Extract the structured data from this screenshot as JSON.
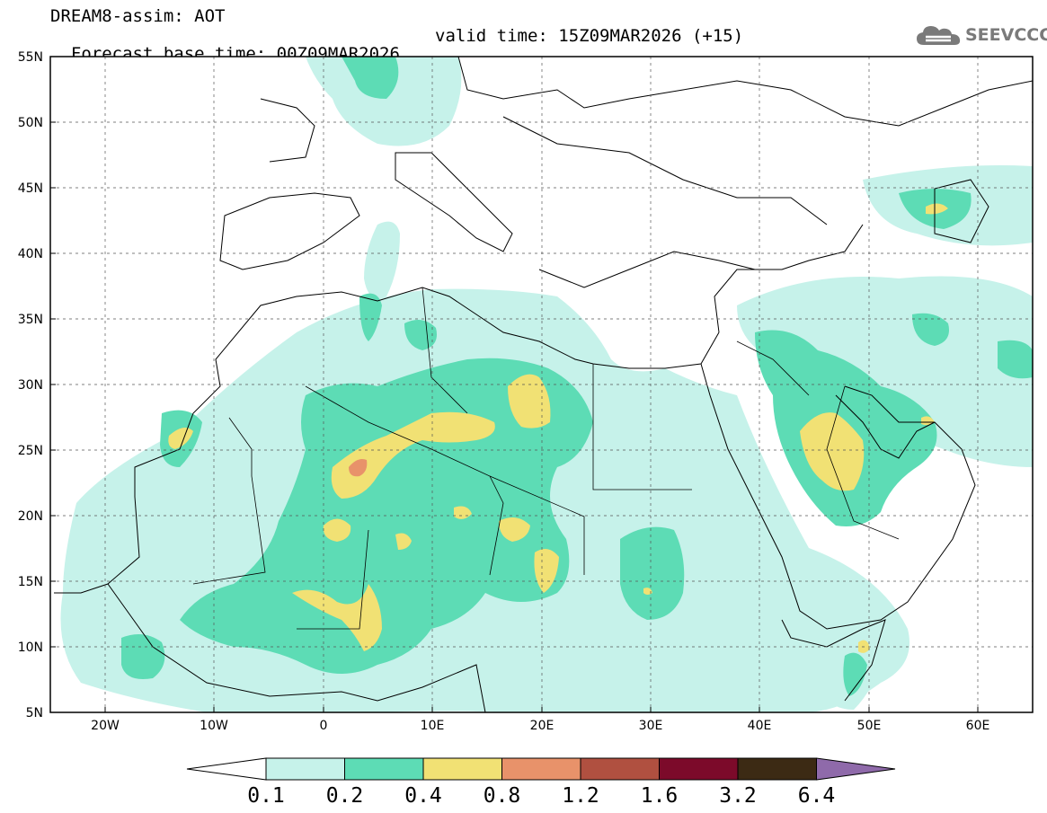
{
  "header": {
    "title_line1": "DREAM8-assim: AOT",
    "title_line2_base": "Forecast base time: 00Z09MAR2026",
    "title_line2_valid": "valid time: 15Z09MAR2026 (+15)",
    "logo_text": "SEEVCCC",
    "logo_icon": "cloud-icon"
  },
  "map": {
    "lat_labels": [
      "55N",
      "50N",
      "45N",
      "40N",
      "35N",
      "30N",
      "25N",
      "20N",
      "15N",
      "10N",
      "5N"
    ],
    "lon_labels": [
      "20W",
      "10W",
      "0",
      "10E",
      "20E",
      "30E",
      "40E",
      "50E",
      "60E"
    ],
    "lat_range": [
      5,
      55
    ],
    "lon_range": [
      -25,
      65
    ],
    "grid": "dashed"
  },
  "colorbar": {
    "levels": [
      "0.1",
      "0.2",
      "0.4",
      "0.8",
      "1.2",
      "1.6",
      "3.2",
      "6.4"
    ],
    "colors": [
      "#ffffff",
      "#c6f2ea",
      "#5ddcb5",
      "#f1e174",
      "#e8926a",
      "#b05040",
      "#7c0a2a",
      "#3c2a14",
      "#8f6aaa"
    ]
  },
  "colors": {
    "c1": "#c6f2ea",
    "c2": "#5ddcb5",
    "c3": "#f1e174",
    "c4": "#e8926a",
    "c5": "#c46a50"
  }
}
